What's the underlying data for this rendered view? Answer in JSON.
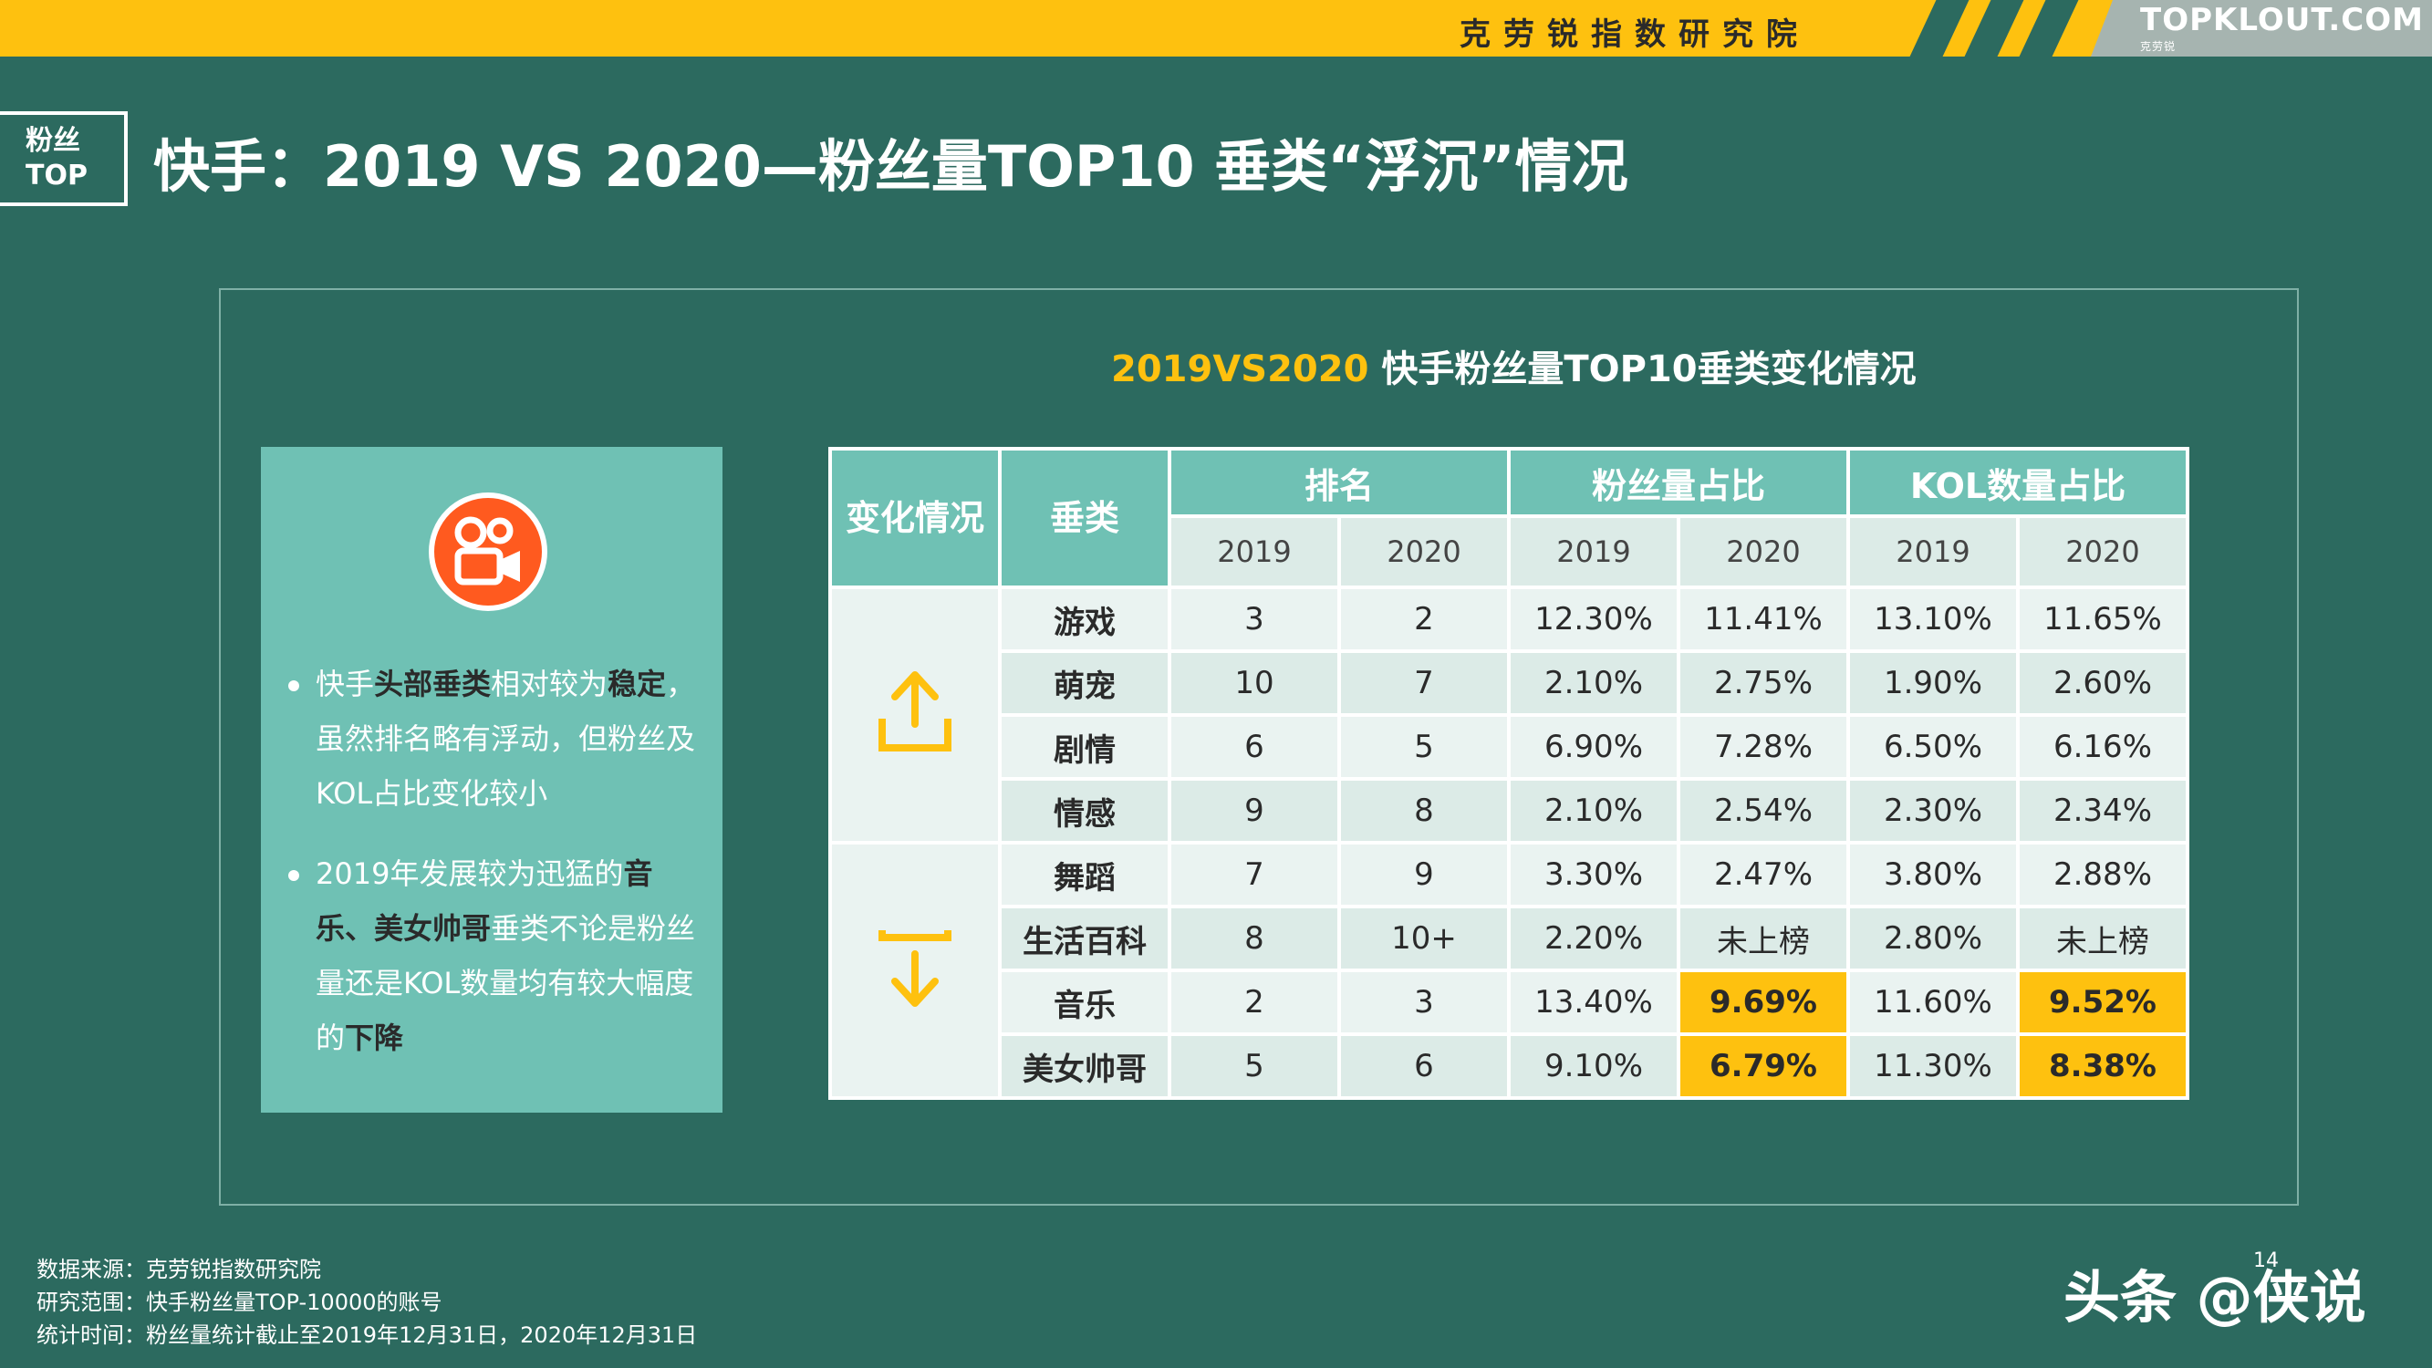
{
  "header": {
    "org_name": "克劳锐指数研究院",
    "brand": "TOPKLOUT.COM",
    "brand_tagline": "克劳锐"
  },
  "corner_tag": {
    "line1": "粉丝",
    "line2": "TOP"
  },
  "page_title": "快手：2019 VS 2020—粉丝量TOP10 垂类“浮沉”情况",
  "chart_title": {
    "years": "2019VS2020",
    "rest": " 快手粉丝量TOP10垂类变化情况"
  },
  "left_card": {
    "icon": "kuaishou-app-icon",
    "bullets": [
      {
        "parts": [
          {
            "t": "快手",
            "b": false
          },
          {
            "t": "头部垂类",
            "b": true
          },
          {
            "t": "相对较为",
            "b": false
          },
          {
            "t": "稳定",
            "b": true
          },
          {
            "t": "，虽然排名略有浮动，但粉丝及KOL占比变化较小",
            "b": false
          }
        ]
      },
      {
        "parts": [
          {
            "t": "2019年发展较为迅猛的",
            "b": false
          },
          {
            "t": "音乐、美女帅哥",
            "b": true
          },
          {
            "t": "垂类不论是粉丝量还是KOL数量均有较大幅度的",
            "b": false
          },
          {
            "t": "下降",
            "b": true
          }
        ]
      }
    ]
  },
  "table": {
    "header_change": "变化情况",
    "header_category": "垂类",
    "header_rank": "排名",
    "header_fans": "粉丝量占比",
    "header_kol": "KOL数量占比",
    "year1": "2019",
    "year2": "2020",
    "up_icon": "arrow-up-icon",
    "down_icon": "arrow-down-icon",
    "rows": [
      {
        "cat": "游戏",
        "r19": "3",
        "r20": "2",
        "f19": "12.30%",
        "f20": "11.41%",
        "k19": "13.10%",
        "k20": "11.65%"
      },
      {
        "cat": "萌宠",
        "r19": "10",
        "r20": "7",
        "f19": "2.10%",
        "f20": "2.75%",
        "k19": "1.90%",
        "k20": "2.60%"
      },
      {
        "cat": "剧情",
        "r19": "6",
        "r20": "5",
        "f19": "6.90%",
        "f20": "7.28%",
        "k19": "6.50%",
        "k20": "6.16%"
      },
      {
        "cat": "情感",
        "r19": "9",
        "r20": "8",
        "f19": "2.10%",
        "f20": "2.54%",
        "k19": "2.30%",
        "k20": "2.34%"
      },
      {
        "cat": "舞蹈",
        "r19": "7",
        "r20": "9",
        "f19": "3.30%",
        "f20": "2.47%",
        "k19": "3.80%",
        "k20": "2.88%"
      },
      {
        "cat": "生活百科",
        "r19": "8",
        "r20": "10+",
        "f19": "2.20%",
        "f20": "未上榜",
        "k19": "2.80%",
        "k20": "未上榜"
      },
      {
        "cat": "音乐",
        "r19": "2",
        "r20": "3",
        "f19": "13.40%",
        "f20": "9.69%",
        "k19": "11.60%",
        "k20": "9.52%"
      },
      {
        "cat": "美女帅哥",
        "r19": "5",
        "r20": "6",
        "f19": "9.10%",
        "f20": "6.79%",
        "k19": "11.30%",
        "k20": "8.38%"
      }
    ],
    "highlight_color": "#fec10f"
  },
  "footnotes": {
    "source": "数据来源：克劳锐指数研究院",
    "scope": "研究范围：快手粉丝量TOP-10000的账号",
    "period": "统计时间：粉丝量统计截止至2019年12月31日，2020年12月31日"
  },
  "watermark": "头条 @侠说",
  "page_number": "14",
  "colors": {
    "background": "#2c6a5f",
    "accent_yellow": "#fec10f",
    "teal": "#6fc1b4"
  }
}
